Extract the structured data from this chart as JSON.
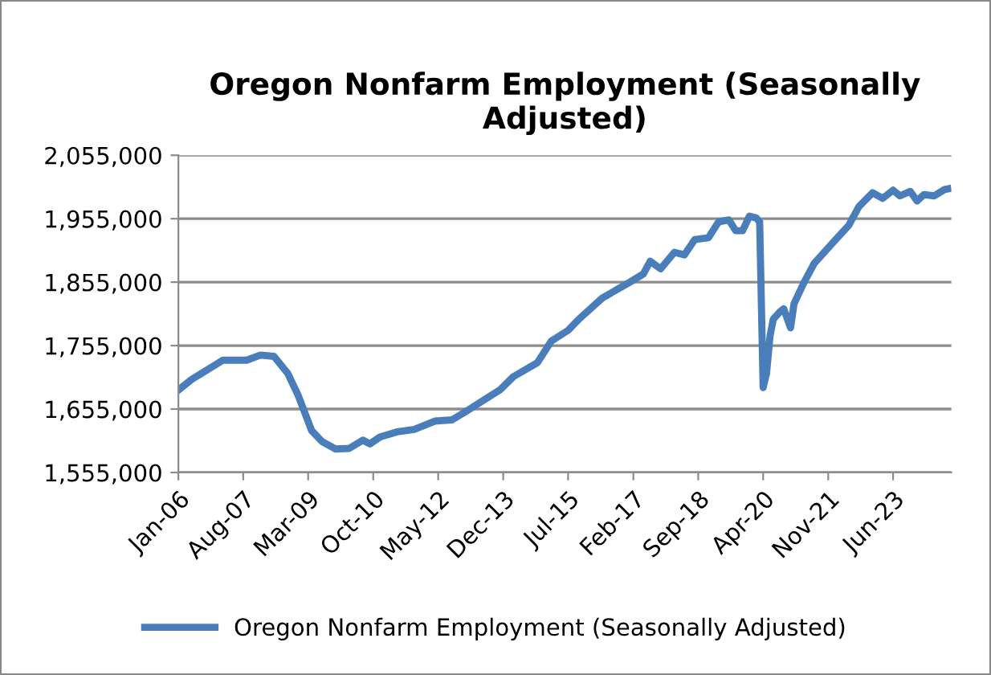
{
  "chart_data": {
    "type": "line",
    "title": "Oregon Nonfarm Employment (Seasonally Adjusted)",
    "x": [
      "2006-01",
      "2006-05",
      "2007-02",
      "2007-09",
      "2008-01",
      "2008-05",
      "2008-09",
      "2008-12",
      "2009-04",
      "2009-07",
      "2009-11",
      "2010-03",
      "2010-07",
      "2010-09",
      "2010-12",
      "2011-05",
      "2011-10",
      "2012-04",
      "2012-09",
      "2013-01",
      "2013-06",
      "2013-11",
      "2014-03",
      "2014-10",
      "2015-02",
      "2015-07",
      "2015-10",
      "2016-05",
      "2017-01",
      "2017-05",
      "2017-07",
      "2017-10",
      "2018-02",
      "2018-05",
      "2018-08",
      "2018-12",
      "2019-03",
      "2019-06",
      "2019-08",
      "2019-10",
      "2019-12",
      "2020-02",
      "2020-03",
      "2020-04",
      "2020-05",
      "2020-06",
      "2020-07",
      "2020-09",
      "2020-10",
      "2020-12",
      "2021-01",
      "2021-04",
      "2021-07",
      "2021-12",
      "2022-05",
      "2022-08",
      "2022-12",
      "2023-03",
      "2023-06",
      "2023-08",
      "2023-11",
      "2024-01",
      "2024-03",
      "2024-06",
      "2024-09",
      "2024-10"
    ],
    "series": [
      {
        "name": "Oregon Nonfarm Employment (Seasonally Adjusted)",
        "color": "#4a7ebb",
        "values": [
          1685000,
          1702000,
          1732000,
          1732000,
          1740000,
          1738000,
          1711000,
          1677000,
          1621000,
          1604000,
          1592000,
          1593000,
          1606000,
          1600000,
          1611000,
          1619000,
          1623000,
          1636000,
          1638000,
          1651000,
          1668000,
          1685000,
          1706000,
          1728000,
          1762000,
          1779000,
          1796000,
          1830000,
          1855000,
          1868000,
          1888000,
          1876000,
          1902000,
          1898000,
          1922000,
          1925000,
          1950000,
          1953000,
          1936000,
          1936000,
          1959000,
          1956000,
          1950000,
          1689000,
          1711000,
          1770000,
          1797000,
          1809000,
          1813000,
          1783000,
          1821000,
          1855000,
          1885000,
          1915000,
          1944000,
          1974000,
          1996000,
          1987000,
          2000000,
          1991000,
          1998000,
          1983000,
          1993000,
          1991000,
          2001000,
          2002000
        ]
      }
    ],
    "xlim": [
      "2006-01",
      "2024-11"
    ],
    "xticks": [
      {
        "value": "2006-01",
        "label": "Jan-06"
      },
      {
        "value": "2007-08",
        "label": "Aug-07"
      },
      {
        "value": "2009-03",
        "label": "Mar-09"
      },
      {
        "value": "2010-10",
        "label": "Oct-10"
      },
      {
        "value": "2012-05",
        "label": "May-12"
      },
      {
        "value": "2013-12",
        "label": "Dec-13"
      },
      {
        "value": "2015-07",
        "label": "Jul-15"
      },
      {
        "value": "2017-02",
        "label": "Feb-17"
      },
      {
        "value": "2018-09",
        "label": "Sep-18"
      },
      {
        "value": "2020-04",
        "label": "Apr-20"
      },
      {
        "value": "2021-11",
        "label": "Nov-21"
      },
      {
        "value": "2023-06",
        "label": "Jun-23"
      }
    ],
    "ylim": [
      1555000,
      2055000
    ],
    "yticks": [
      {
        "value": 1555000,
        "label": "1,555,000"
      },
      {
        "value": 1655000,
        "label": "1,655,000"
      },
      {
        "value": 1755000,
        "label": "1,755,000"
      },
      {
        "value": 1855000,
        "label": "1,855,000"
      },
      {
        "value": 1955000,
        "label": "1,955,000"
      },
      {
        "value": 2055000,
        "label": "2,055,000"
      }
    ],
    "grid": "y",
    "legend": "bottom",
    "marker": "none",
    "line_style": "solid"
  }
}
